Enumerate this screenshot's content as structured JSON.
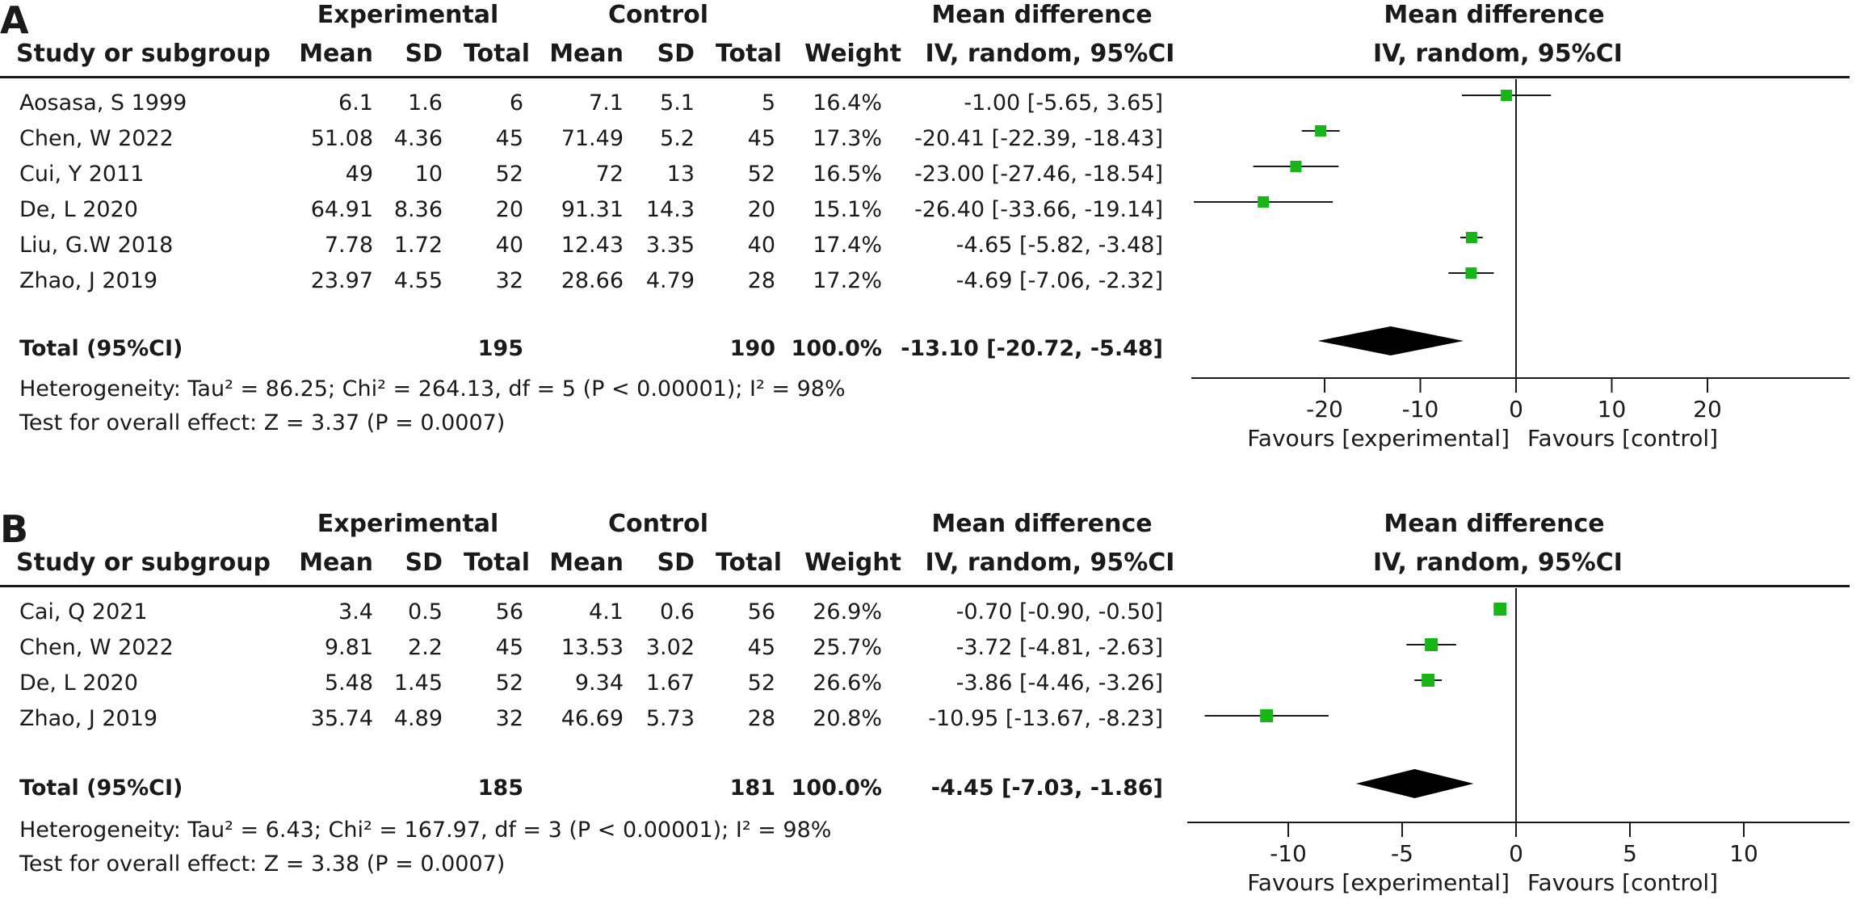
{
  "colors": {
    "marker": "#17b517",
    "line": "#1a1a1a",
    "diamond": "#000000"
  },
  "columns": {
    "experimental_group": "Experimental",
    "control_group": "Control",
    "study": "Study or subgroup",
    "mean": "Mean",
    "sd": "SD",
    "total": "Total",
    "weight": "Weight",
    "md_title": "Mean difference",
    "md_method": "IV, random, 95%CI"
  },
  "chart_data": [
    {
      "type": "forest",
      "panel_label": "A",
      "xlim": [
        -33.66,
        35
      ],
      "ticks": [
        -20,
        -10,
        0,
        10,
        20
      ],
      "tick_labels": [
        "-20",
        "-10",
        "0",
        "10",
        "20"
      ],
      "favours_left": "Favours [experimental]",
      "favours_right": "Favours [control]",
      "studies": [
        {
          "name": "Aosasa, S 1999",
          "exp_mean": "6.1",
          "exp_sd": "1.6",
          "exp_total": "6",
          "ctl_mean": "7.1",
          "ctl_sd": "5.1",
          "ctl_total": "5",
          "weight": "16.4%",
          "ci_text": "-1.00 [-5.65, 3.65]",
          "md": -1.0,
          "lo": -5.65,
          "hi": 3.65
        },
        {
          "name": "Chen,  W 2022",
          "exp_mean": "51.08",
          "exp_sd": "4.36",
          "exp_total": "45",
          "ctl_mean": "71.49",
          "ctl_sd": "5.2",
          "ctl_total": "45",
          "weight": "17.3%",
          "ci_text": "-20.41 [-22.39, -18.43]",
          "md": -20.41,
          "lo": -22.39,
          "hi": -18.43
        },
        {
          "name": "Cui, Y 2011",
          "exp_mean": "49",
          "exp_sd": "10",
          "exp_total": "52",
          "ctl_mean": "72",
          "ctl_sd": "13",
          "ctl_total": "52",
          "weight": "16.5%",
          "ci_text": "-23.00 [-27.46, -18.54]",
          "md": -23.0,
          "lo": -27.46,
          "hi": -18.54
        },
        {
          "name": "De, L 2020",
          "exp_mean": "64.91",
          "exp_sd": "8.36",
          "exp_total": "20",
          "ctl_mean": "91.31",
          "ctl_sd": "14.3",
          "ctl_total": "20",
          "weight": "15.1%",
          "ci_text": "-26.40 [-33.66, -19.14]",
          "md": -26.4,
          "lo": -33.66,
          "hi": -19.14
        },
        {
          "name": "Liu, G.W 2018",
          "exp_mean": "7.78",
          "exp_sd": "1.72",
          "exp_total": "40",
          "ctl_mean": "12.43",
          "ctl_sd": "3.35",
          "ctl_total": "40",
          "weight": "17.4%",
          "ci_text": "-4.65 [-5.82, -3.48]",
          "md": -4.65,
          "lo": -5.82,
          "hi": -3.48
        },
        {
          "name": "Zhao, J 2019",
          "exp_mean": "23.97",
          "exp_sd": "4.55",
          "exp_total": "32",
          "ctl_mean": "28.66",
          "ctl_sd": "4.79",
          "ctl_total": "28",
          "weight": "17.2%",
          "ci_text": "-4.69 [-7.06, -2.32]",
          "md": -4.69,
          "lo": -7.06,
          "hi": -2.32
        }
      ],
      "total": {
        "label": "Total (95%CI)",
        "exp_total": "195",
        "ctl_total": "190",
        "weight": "100.0%",
        "ci_text": "-13.10 [-20.72, -5.48]",
        "md": -13.1,
        "lo": -20.72,
        "hi": -5.48
      },
      "heterogeneity": "Heterogeneity: Tau² = 86.25; Chi² = 264.13, df = 5 (P < 0.00001); I² = 98%",
      "overall_effect": "Test for overall effect: Z = 3.37 (P = 0.0007)"
    },
    {
      "type": "forest",
      "panel_label": "B",
      "xlim": [
        -14.5,
        14.5
      ],
      "ticks": [
        -10,
        -5,
        0,
        5,
        10
      ],
      "tick_labels": [
        "-10",
        "-5",
        "0",
        "5",
        "10"
      ],
      "favours_left": "Favours [experimental]",
      "favours_right": "Favours [control]",
      "studies": [
        {
          "name": "Cai, Q 2021",
          "exp_mean": "3.4",
          "exp_sd": "0.5",
          "exp_total": "56",
          "ctl_mean": "4.1",
          "ctl_sd": "0.6",
          "ctl_total": "56",
          "weight": "26.9%",
          "ci_text": "-0.70 [-0.90, -0.50]",
          "md": -0.7,
          "lo": -0.9,
          "hi": -0.5
        },
        {
          "name": "Chen,  W 2022",
          "exp_mean": "9.81",
          "exp_sd": "2.2",
          "exp_total": "45",
          "ctl_mean": "13.53",
          "ctl_sd": "3.02",
          "ctl_total": "45",
          "weight": "25.7%",
          "ci_text": "-3.72 [-4.81, -2.63]",
          "md": -3.72,
          "lo": -4.81,
          "hi": -2.63
        },
        {
          "name": "De, L 2020",
          "exp_mean": "5.48",
          "exp_sd": "1.45",
          "exp_total": "52",
          "ctl_mean": "9.34",
          "ctl_sd": "1.67",
          "ctl_total": "52",
          "weight": "26.6%",
          "ci_text": "-3.86 [-4.46, -3.26]",
          "md": -3.86,
          "lo": -4.46,
          "hi": -3.26
        },
        {
          "name": "Zhao, J 2019",
          "exp_mean": "35.74",
          "exp_sd": "4.89",
          "exp_total": "32",
          "ctl_mean": "46.69",
          "ctl_sd": "5.73",
          "ctl_total": "28",
          "weight": "20.8%",
          "ci_text": "-10.95 [-13.67, -8.23]",
          "md": -10.95,
          "lo": -13.67,
          "hi": -8.23
        }
      ],
      "total": {
        "label": "Total (95%CI)",
        "exp_total": "185",
        "ctl_total": "181",
        "weight": "100.0%",
        "ci_text": "-4.45 [-7.03, -1.86]",
        "md": -4.45,
        "lo": -7.03,
        "hi": -1.86
      },
      "heterogeneity": "Heterogeneity: Tau² = 6.43; Chi² = 167.97, df = 3 (P < 0.00001); I² = 98%",
      "overall_effect": "Test for overall effect: Z = 3.38 (P = 0.0007)"
    }
  ]
}
